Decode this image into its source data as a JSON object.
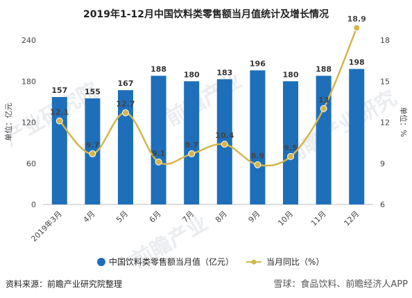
{
  "chart_data": {
    "type": "bar",
    "title": "2019年1-12月中国饮料类零售额当月值统计及增长情况",
    "categories": [
      "2019年3月",
      "4月",
      "5月",
      "6月",
      "7月",
      "8月",
      "9月",
      "10月",
      "11月",
      "12月"
    ],
    "series": [
      {
        "name": "中国饮料类零售额当月值（亿元）",
        "type": "bar",
        "axis": "left",
        "color": "#1e6fba",
        "values": [
          157,
          155,
          167,
          188,
          180,
          183,
          196,
          180,
          188,
          198
        ]
      },
      {
        "name": "当月同比（%）",
        "type": "line",
        "axis": "right",
        "color": "#d4b54a",
        "values": [
          12.1,
          9.7,
          12.7,
          9.1,
          9.7,
          10.4,
          8.9,
          9.5,
          13,
          18.9
        ]
      }
    ],
    "y_left": {
      "label": "单位：亿元",
      "ticks": [
        0,
        60,
        120,
        180,
        240
      ],
      "range": [
        0,
        240
      ]
    },
    "y_right": {
      "label": "单位：%",
      "ticks": [
        6,
        9,
        12,
        15,
        18
      ],
      "range": [
        6,
        18
      ]
    },
    "grid": false,
    "legend_position": "bottom"
  },
  "footer": {
    "source": "资料来源：前瞻产业研究院整理",
    "corner_text": "雪球：食品饮料、前瞻经济人APP"
  }
}
